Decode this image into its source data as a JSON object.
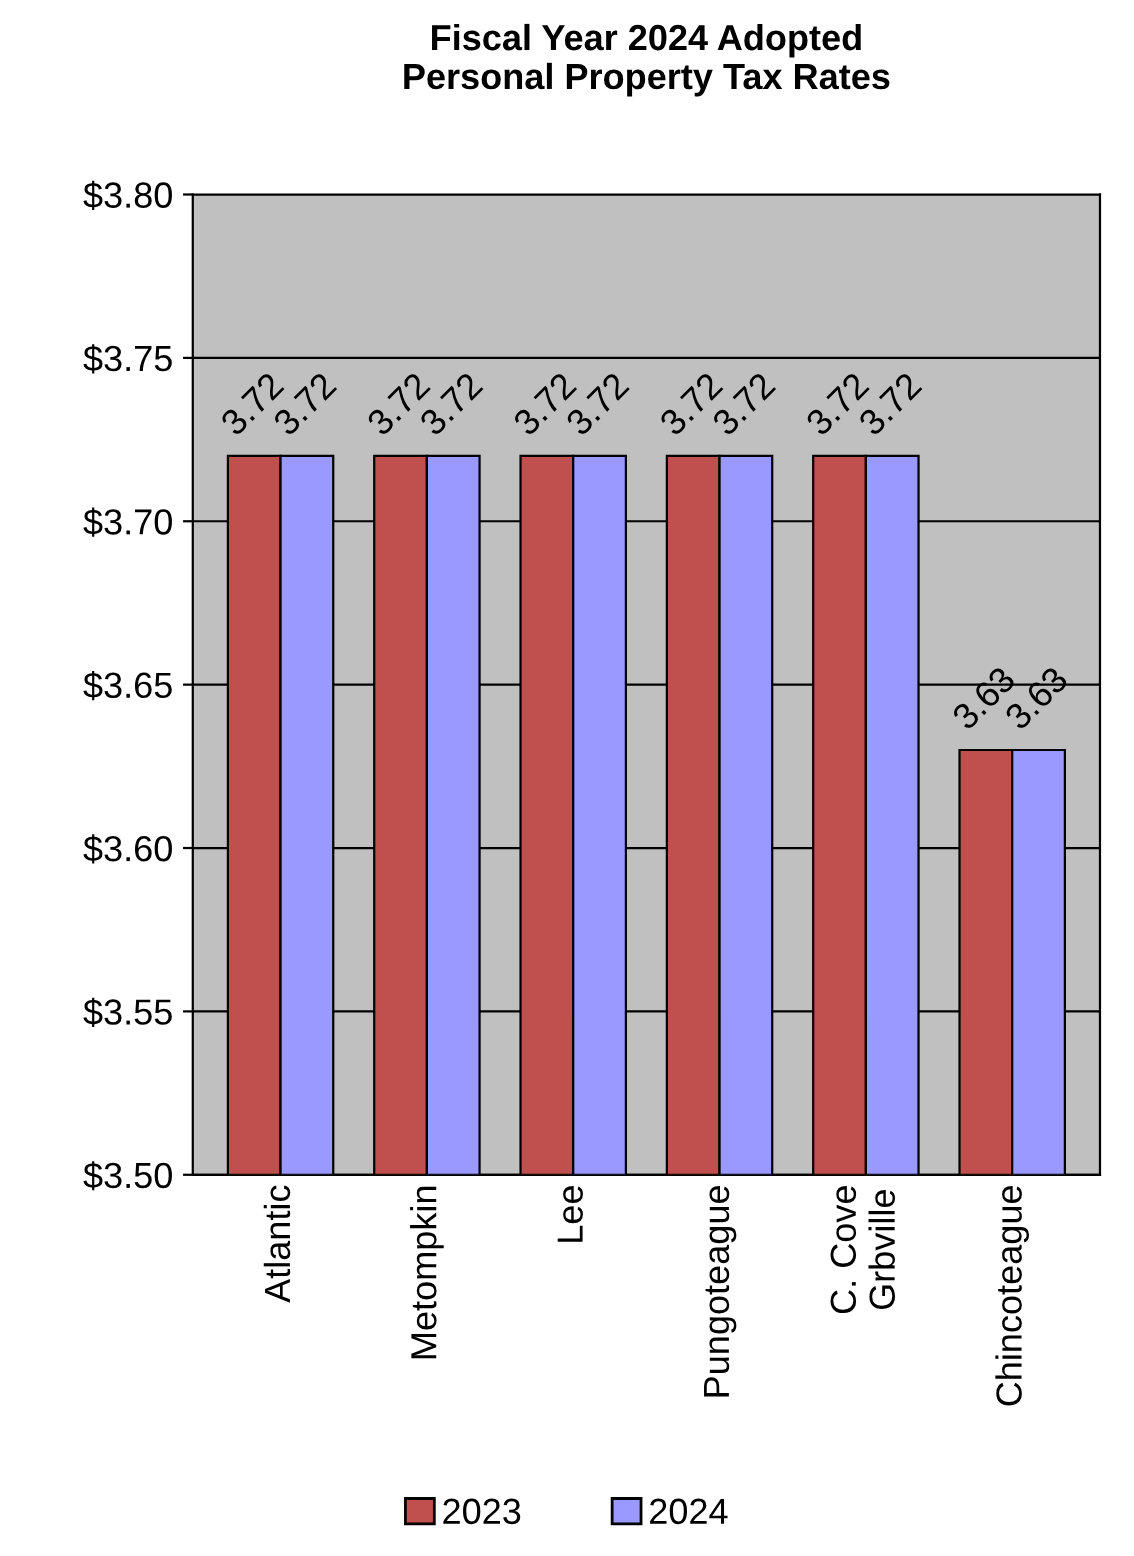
{
  "chart_data": {
    "type": "bar",
    "title": "Fiscal Year 2024 Adopted\nPersonal Property Tax Rates",
    "categories": [
      "Atlantic",
      "Metompkin",
      "Lee",
      "Pungoteague",
      "C. Cove\nGrbville",
      "Chincoteague"
    ],
    "series": [
      {
        "name": "2023",
        "color": "#c0504d",
        "values": [
          3.72,
          3.72,
          3.72,
          3.72,
          3.72,
          3.63
        ]
      },
      {
        "name": "2024",
        "color": "#9999ff",
        "values": [
          3.72,
          3.72,
          3.72,
          3.72,
          3.72,
          3.63
        ]
      }
    ],
    "ylim": [
      3.5,
      3.8
    ],
    "yticks": [
      {
        "value": 3.5,
        "label": "$3.50"
      },
      {
        "value": 3.55,
        "label": "$3.55"
      },
      {
        "value": 3.6,
        "label": "$3.60"
      },
      {
        "value": 3.65,
        "label": "$3.65"
      },
      {
        "value": 3.7,
        "label": "$3.70"
      },
      {
        "value": 3.75,
        "label": "$3.75"
      },
      {
        "value": 3.8,
        "label": "$3.80"
      }
    ],
    "grid": "y",
    "legend": "bottom",
    "data_labels": true
  }
}
